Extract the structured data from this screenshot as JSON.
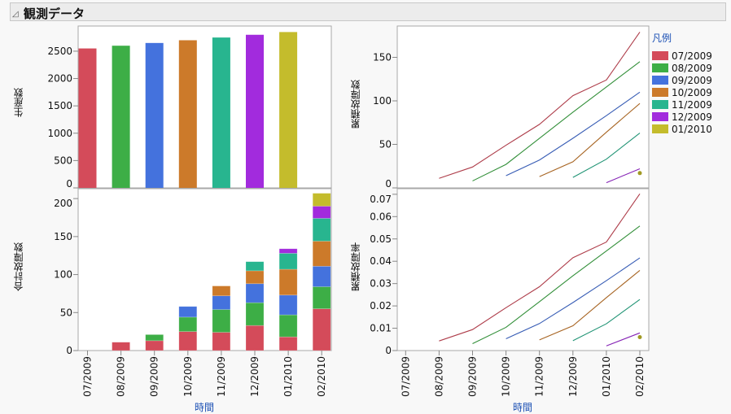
{
  "header": {
    "title": "観測データ"
  },
  "legend": {
    "title": "凡例",
    "items": [
      {
        "label": "07/2009",
        "color": "#d44b5a"
      },
      {
        "label": "08/2009",
        "color": "#3dae46"
      },
      {
        "label": "09/2009",
        "color": "#4472dd"
      },
      {
        "label": "10/2009",
        "color": "#cc7a2a"
      },
      {
        "label": "11/2009",
        "color": "#28b58f"
      },
      {
        "label": "12/2009",
        "color": "#a22bdd"
      },
      {
        "label": "01/2010",
        "color": "#c4bc2c"
      }
    ]
  },
  "x_axis_label": "時間",
  "chart_data": [
    {
      "type": "bar",
      "ylabel": "生産数",
      "ylim": [
        0,
        2960
      ],
      "yticks": [
        0,
        500,
        1000,
        1500,
        2000,
        2500
      ],
      "categories": [
        "07/2009",
        "08/2009",
        "09/2009",
        "10/2009",
        "11/2009",
        "12/2009",
        "01/2010",
        "02/2010"
      ],
      "values": [
        2550,
        2600,
        2650,
        2700,
        2750,
        2800,
        2850,
        null
      ],
      "grid": false
    },
    {
      "type": "bar",
      "stacked": true,
      "ylabel": "合計故障数",
      "ylim": [
        0,
        213
      ],
      "yticks": [
        0,
        50,
        100,
        150,
        200
      ],
      "categories": [
        "07/2009",
        "08/2009",
        "09/2009",
        "10/2009",
        "11/2009",
        "12/2009",
        "01/2010",
        "02/2010"
      ],
      "series": [
        {
          "name": "07/2009",
          "values": [
            null,
            11,
            13,
            25,
            24,
            33,
            18,
            55
          ]
        },
        {
          "name": "08/2009",
          "values": [
            null,
            null,
            8,
            19,
            30,
            30,
            29,
            29
          ]
        },
        {
          "name": "09/2009",
          "values": [
            null,
            null,
            null,
            14,
            18,
            25,
            26,
            27
          ]
        },
        {
          "name": "10/2009",
          "values": [
            null,
            null,
            null,
            null,
            13,
            17,
            34,
            33
          ]
        },
        {
          "name": "11/2009",
          "values": [
            null,
            null,
            null,
            null,
            null,
            12,
            21,
            30
          ]
        },
        {
          "name": "12/2009",
          "values": [
            null,
            null,
            null,
            null,
            null,
            null,
            6,
            16
          ]
        },
        {
          "name": "01/2010",
          "values": [
            null,
            null,
            null,
            null,
            null,
            null,
            null,
            17
          ]
        }
      ],
      "grid": false
    },
    {
      "type": "line",
      "ylabel": "累積故障数",
      "ylim": [
        0,
        186
      ],
      "yticks": [
        0,
        50,
        100,
        150
      ],
      "categories": [
        "07/2009",
        "08/2009",
        "09/2009",
        "10/2009",
        "11/2009",
        "12/2009",
        "01/2010",
        "02/2010"
      ],
      "series": [
        {
          "name": "07/2009",
          "values": [
            null,
            11,
            24,
            49,
            73,
            106,
            124,
            179
          ]
        },
        {
          "name": "08/2009",
          "values": [
            null,
            null,
            8,
            27,
            57,
            87,
            116,
            145
          ]
        },
        {
          "name": "09/2009",
          "values": [
            null,
            null,
            null,
            14,
            32,
            57,
            83,
            110
          ]
        },
        {
          "name": "10/2009",
          "values": [
            null,
            null,
            null,
            null,
            13,
            30,
            64,
            97
          ]
        },
        {
          "name": "11/2009",
          "values": [
            null,
            null,
            null,
            null,
            null,
            12,
            33,
            63
          ]
        },
        {
          "name": "12/2009",
          "values": [
            null,
            null,
            null,
            null,
            null,
            null,
            6,
            22
          ]
        },
        {
          "name": "01/2010",
          "values": [
            null,
            null,
            null,
            null,
            null,
            null,
            null,
            17
          ]
        }
      ],
      "legend_placement": "right",
      "grid": false
    },
    {
      "type": "line",
      "ylabel": "累積故障率",
      "ylim": [
        0,
        0.0725
      ],
      "yticks": [
        0,
        0.01,
        0.02,
        0.03,
        0.04,
        0.05,
        0.06,
        0.07
      ],
      "ytick_labels": [
        "0",
        "0.01",
        "0.02",
        "0.03",
        "0.04",
        "0.05",
        "0.06",
        "0.07"
      ],
      "categories": [
        "07/2009",
        "08/2009",
        "09/2009",
        "10/2009",
        "11/2009",
        "12/2009",
        "01/2010",
        "02/2010"
      ],
      "series": [
        {
          "name": "07/2009",
          "values": [
            null,
            0.0043,
            0.0094,
            0.0192,
            0.0286,
            0.0416,
            0.0486,
            0.0702
          ]
        },
        {
          "name": "08/2009",
          "values": [
            null,
            null,
            0.0031,
            0.0104,
            0.0219,
            0.0335,
            0.0446,
            0.0558
          ]
        },
        {
          "name": "09/2009",
          "values": [
            null,
            null,
            null,
            0.0053,
            0.0121,
            0.0215,
            0.0313,
            0.0415
          ]
        },
        {
          "name": "10/2009",
          "values": [
            null,
            null,
            null,
            null,
            0.0048,
            0.0111,
            0.0237,
            0.0359
          ]
        },
        {
          "name": "11/2009",
          "values": [
            null,
            null,
            null,
            null,
            null,
            0.0044,
            0.012,
            0.0229
          ]
        },
        {
          "name": "12/2009",
          "values": [
            null,
            null,
            null,
            null,
            null,
            null,
            0.0021,
            0.0079
          ]
        },
        {
          "name": "01/2010",
          "values": [
            null,
            null,
            null,
            null,
            null,
            null,
            null,
            0.006
          ]
        }
      ],
      "grid": false
    }
  ]
}
